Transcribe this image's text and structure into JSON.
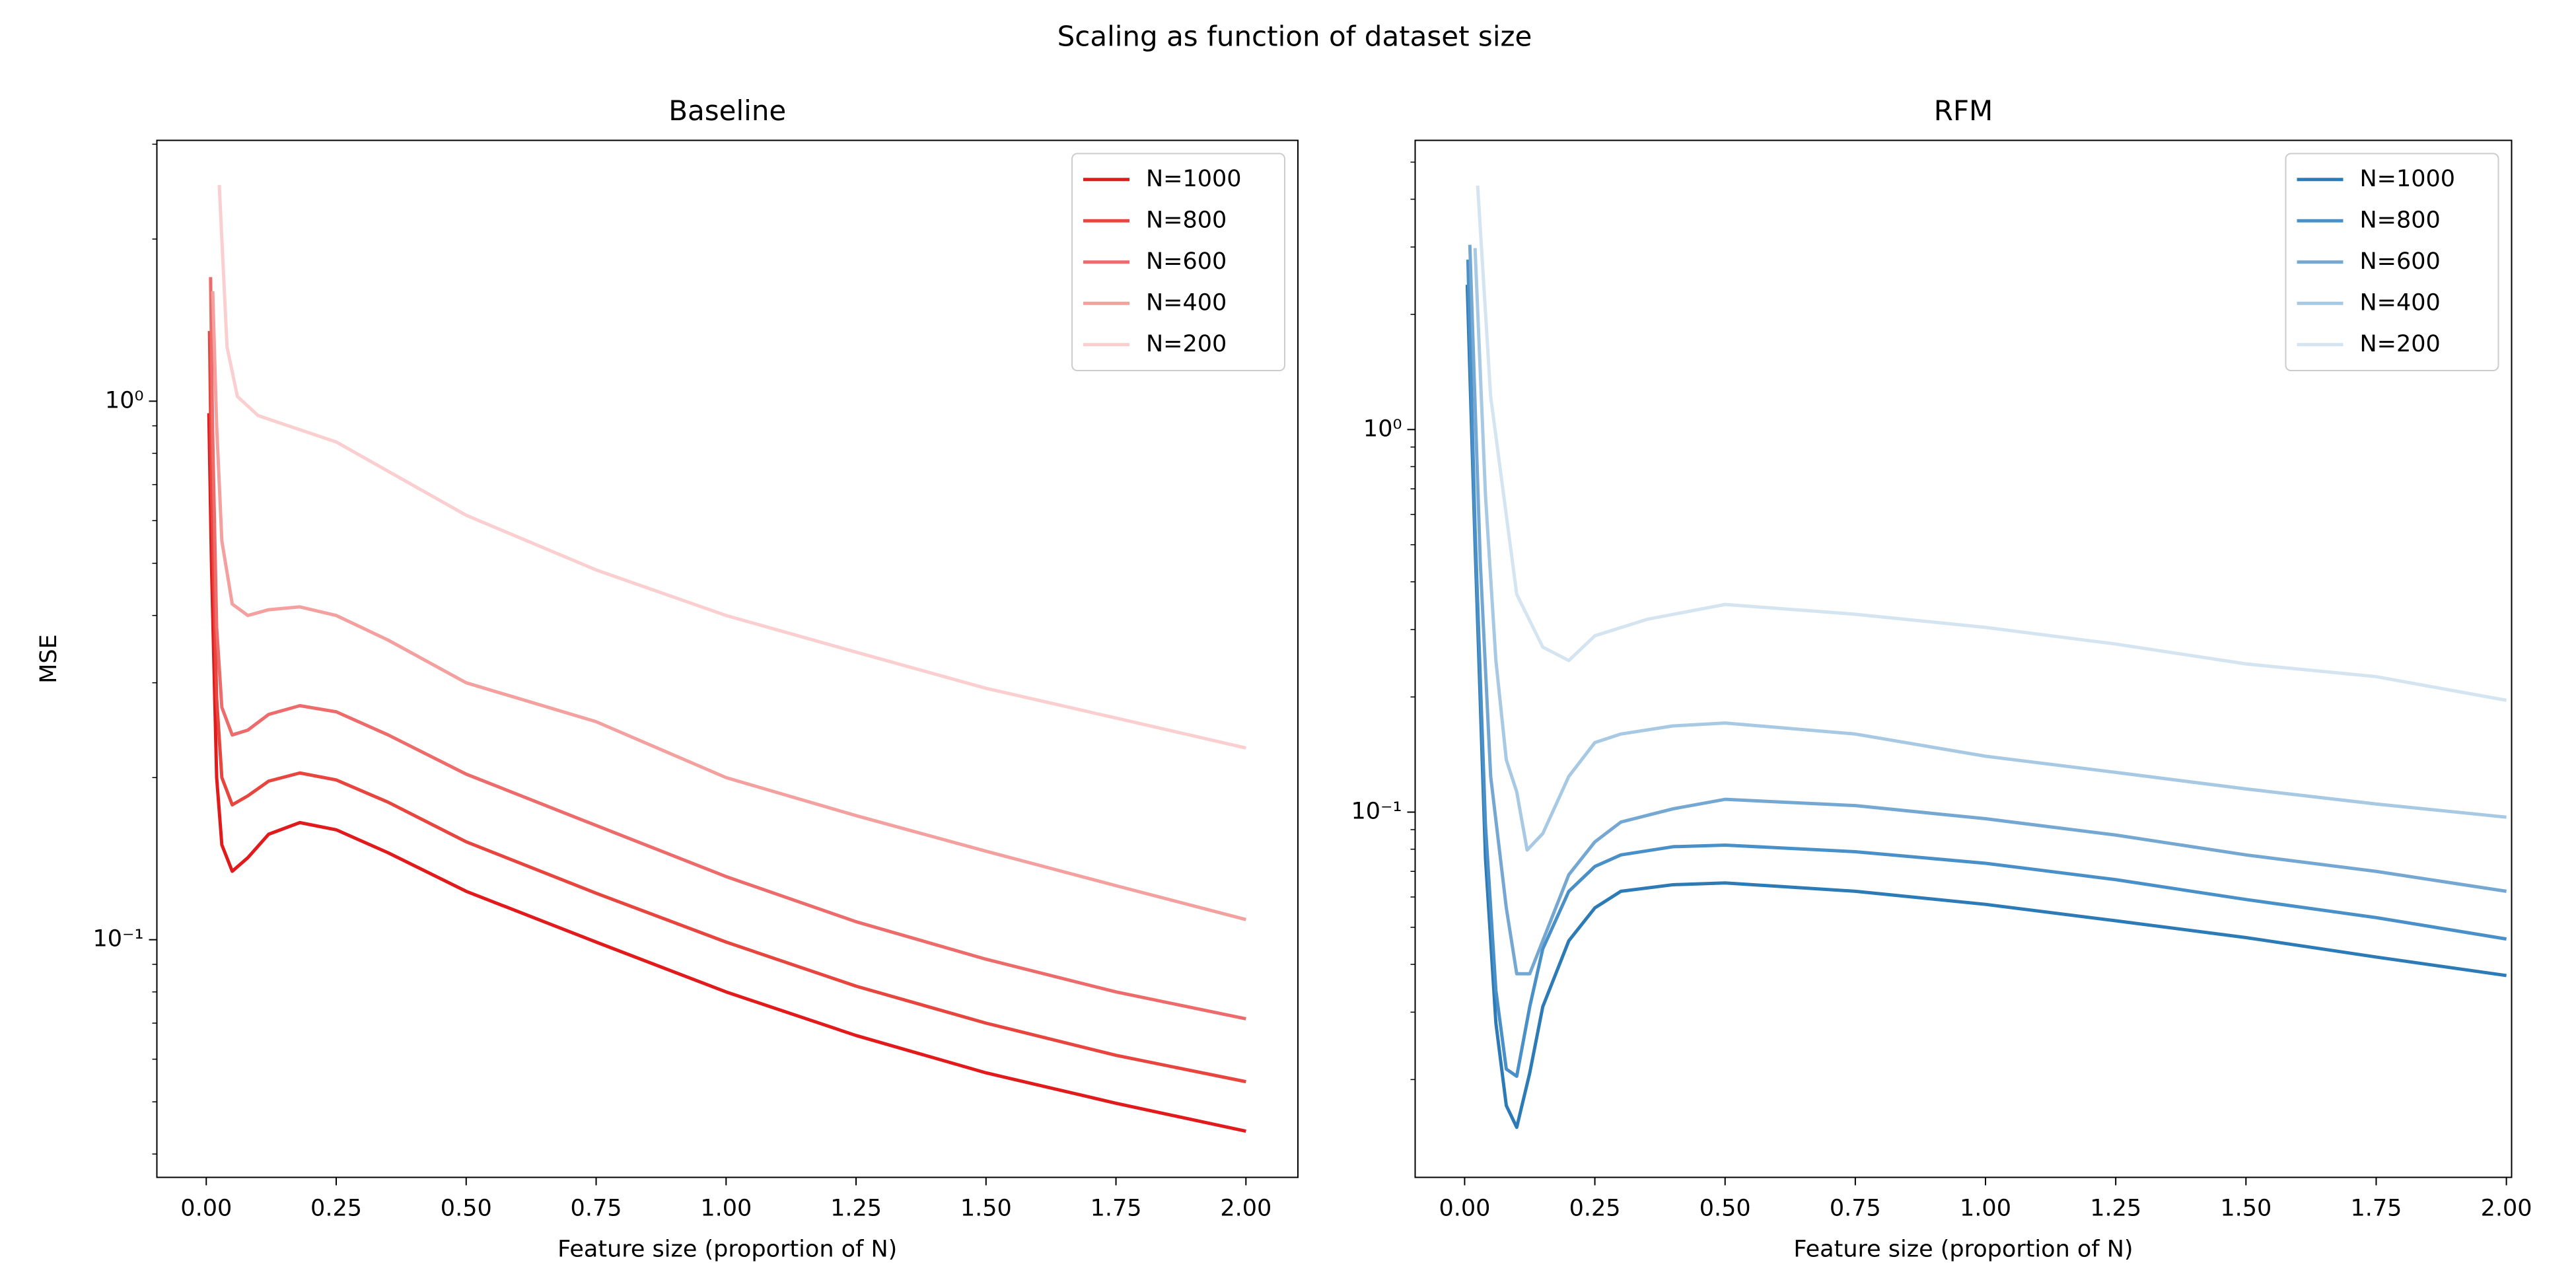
{
  "title": "Scaling as function of dataset size",
  "chart_data": [
    {
      "type": "line",
      "title": "Baseline",
      "xlabel": "Feature size (proportion of N)",
      "ylabel": "MSE",
      "yscale": "log",
      "legend": "upper right",
      "xlim": [
        -0.095,
        2.1
      ],
      "ylim": [
        0.0362,
        3.05
      ],
      "xticks": [
        {
          "value": 0,
          "label": "0.00"
        },
        {
          "value": 0.25,
          "label": "0.25"
        },
        {
          "value": 0.5,
          "label": "0.50"
        },
        {
          "value": 0.75,
          "label": "0.75"
        },
        {
          "value": 1,
          "label": "1.00"
        },
        {
          "value": 1.25,
          "label": "1.25"
        },
        {
          "value": 1.5,
          "label": "1.50"
        },
        {
          "value": 1.75,
          "label": "1.75"
        },
        {
          "value": 2,
          "label": "2.00"
        }
      ],
      "yticks": [
        {
          "value": 1,
          "label": "10⁰"
        },
        {
          "value": 0.1,
          "label": "10⁻¹"
        }
      ],
      "yminorticks": [
        0.04,
        0.05,
        0.06,
        0.07,
        0.08,
        0.09,
        0.2,
        0.3,
        0.4,
        0.5,
        0.6,
        0.7,
        0.8,
        0.9,
        2,
        3
      ],
      "series": [
        {
          "name": "N=1000",
          "color": "#e31a1c",
          "x": [
            0.005,
            0.01,
            0.02,
            0.03,
            0.05,
            0.08,
            0.12,
            0.18,
            0.25,
            0.35,
            0.5,
            0.75,
            1.0,
            1.25,
            1.5,
            1.75,
            2.0
          ],
          "values": [
            0.95,
            0.5,
            0.2,
            0.15,
            0.134,
            0.142,
            0.157,
            0.165,
            0.16,
            0.145,
            0.123,
            0.099,
            0.08,
            0.0664,
            0.0566,
            0.0497,
            0.0441
          ]
        },
        {
          "name": "N=800",
          "color": "#e8453f",
          "x": [
            0.00625,
            0.01,
            0.02,
            0.03,
            0.05,
            0.08,
            0.12,
            0.18,
            0.25,
            0.35,
            0.5,
            0.75,
            1.0,
            1.25,
            1.5,
            1.75,
            2.0
          ],
          "values": [
            1.35,
            0.7,
            0.28,
            0.2,
            0.178,
            0.185,
            0.197,
            0.204,
            0.198,
            0.18,
            0.152,
            0.122,
            0.099,
            0.082,
            0.07,
            0.061,
            0.0545
          ]
        },
        {
          "name": "N=600",
          "color": "#ee6b6b",
          "x": [
            0.0083,
            0.012,
            0.02,
            0.03,
            0.05,
            0.08,
            0.12,
            0.18,
            0.25,
            0.35,
            0.5,
            0.75,
            1.0,
            1.25,
            1.5,
            1.75,
            2.0
          ],
          "values": [
            1.7,
            0.9,
            0.38,
            0.27,
            0.24,
            0.245,
            0.262,
            0.272,
            0.265,
            0.24,
            0.203,
            0.163,
            0.131,
            0.108,
            0.092,
            0.08,
            0.0713
          ]
        },
        {
          "name": "N=400",
          "color": "#f4a09f",
          "x": [
            0.0125,
            0.02,
            0.03,
            0.05,
            0.08,
            0.12,
            0.18,
            0.25,
            0.35,
            0.5,
            0.75,
            1.0,
            1.25,
            1.5,
            1.75,
            2.0
          ],
          "values": [
            1.6,
            0.9,
            0.55,
            0.42,
            0.4,
            0.41,
            0.415,
            0.4,
            0.36,
            0.3,
            0.254,
            0.2,
            0.17,
            0.146,
            0.126,
            0.109
          ]
        },
        {
          "name": "N=200",
          "color": "#fbcfcf",
          "x": [
            0.025,
            0.04,
            0.06,
            0.1,
            0.25,
            0.5,
            0.75,
            1.0,
            1.25,
            1.5,
            1.75,
            2.0
          ],
          "values": [
            2.52,
            1.26,
            1.02,
            0.94,
            0.84,
            0.614,
            0.486,
            0.4,
            0.342,
            0.293,
            0.258,
            0.227
          ]
        }
      ]
    },
    {
      "type": "line",
      "title": "RFM",
      "xlabel": "Feature size (proportion of N)",
      "yscale": "log",
      "legend": "upper right",
      "xlim": [
        -0.095,
        2.01
      ],
      "ylim": [
        0.0111,
        5.7
      ],
      "xticks": [
        {
          "value": 0,
          "label": "0.00"
        },
        {
          "value": 0.25,
          "label": "0.25"
        },
        {
          "value": 0.5,
          "label": "0.50"
        },
        {
          "value": 0.75,
          "label": "0.75"
        },
        {
          "value": 1,
          "label": "1.00"
        },
        {
          "value": 1.25,
          "label": "1.25"
        },
        {
          "value": 1.5,
          "label": "1.50"
        },
        {
          "value": 1.75,
          "label": "1.75"
        },
        {
          "value": 2,
          "label": "2.00"
        }
      ],
      "yticks": [
        {
          "value": 1,
          "label": "10⁰"
        },
        {
          "value": 0.1,
          "label": "10⁻¹"
        }
      ],
      "yminorticks": [
        0.02,
        0.03,
        0.04,
        0.05,
        0.06,
        0.07,
        0.08,
        0.09,
        0.2,
        0.3,
        0.4,
        0.5,
        0.6,
        0.7,
        0.8,
        0.9,
        2,
        3,
        4,
        5
      ],
      "series": [
        {
          "name": "N=1000",
          "color": "#2c7bb6",
          "x": [
            0.005,
            0.02,
            0.04,
            0.06,
            0.08,
            0.1,
            0.125,
            0.15,
            0.2,
            0.25,
            0.3,
            0.4,
            0.5,
            0.75,
            1.0,
            1.25,
            1.5,
            1.75,
            2.0
          ],
          "values": [
            2.39,
            0.5,
            0.0757,
            0.0281,
            0.0171,
            0.015,
            0.0208,
            0.031,
            0.0461,
            0.0562,
            0.0621,
            0.0646,
            0.0653,
            0.0621,
            0.0574,
            0.052,
            0.047,
            0.0418,
            0.0374
          ]
        },
        {
          "name": "N=800",
          "color": "#4a90c8",
          "x": [
            0.00625,
            0.02,
            0.04,
            0.06,
            0.08,
            0.1,
            0.125,
            0.15,
            0.2,
            0.25,
            0.3,
            0.4,
            0.5,
            0.75,
            1.0,
            1.25,
            1.5,
            1.75,
            2.0
          ],
          "values": [
            2.78,
            0.551,
            0.0924,
            0.0342,
            0.0213,
            0.0204,
            0.031,
            0.0439,
            0.0621,
            0.0721,
            0.0773,
            0.0812,
            0.082,
            0.0788,
            0.0735,
            0.0666,
            0.0591,
            0.053,
            0.0466
          ]
        },
        {
          "name": "N=600",
          "color": "#74a8d3",
          "x": [
            0.01,
            0.03,
            0.05,
            0.08,
            0.1,
            0.125,
            0.15,
            0.2,
            0.25,
            0.3,
            0.4,
            0.5,
            0.75,
            1.0,
            1.25,
            1.5,
            1.75,
            2.0
          ],
          "values": [
            3.04,
            0.452,
            0.124,
            0.0562,
            0.0378,
            0.0378,
            0.0461,
            0.0686,
            0.0836,
            0.0942,
            0.102,
            0.108,
            0.104,
            0.0961,
            0.0871,
            0.0773,
            0.07,
            0.0621
          ]
        },
        {
          "name": "N=400",
          "color": "#a7c9e3",
          "x": [
            0.02,
            0.04,
            0.06,
            0.08,
            0.1,
            0.12,
            0.15,
            0.2,
            0.25,
            0.3,
            0.4,
            0.5,
            0.75,
            1.0,
            1.25,
            1.5,
            1.75,
            2.0
          ],
          "values": [
            2.98,
            0.673,
            0.249,
            0.137,
            0.113,
            0.0796,
            0.0879,
            0.124,
            0.152,
            0.16,
            0.168,
            0.171,
            0.16,
            0.14,
            0.127,
            0.115,
            0.105,
            0.097
          ]
        },
        {
          "name": "N=200",
          "color": "#d5e4f1",
          "x": [
            0.025,
            0.05,
            0.1,
            0.15,
            0.2,
            0.25,
            0.35,
            0.5,
            0.75,
            1.0,
            1.25,
            1.5,
            1.75,
            2.0
          ],
          "values": [
            4.34,
            1.22,
            0.371,
            0.27,
            0.249,
            0.289,
            0.319,
            0.349,
            0.329,
            0.304,
            0.275,
            0.244,
            0.226,
            0.196
          ]
        }
      ]
    }
  ]
}
